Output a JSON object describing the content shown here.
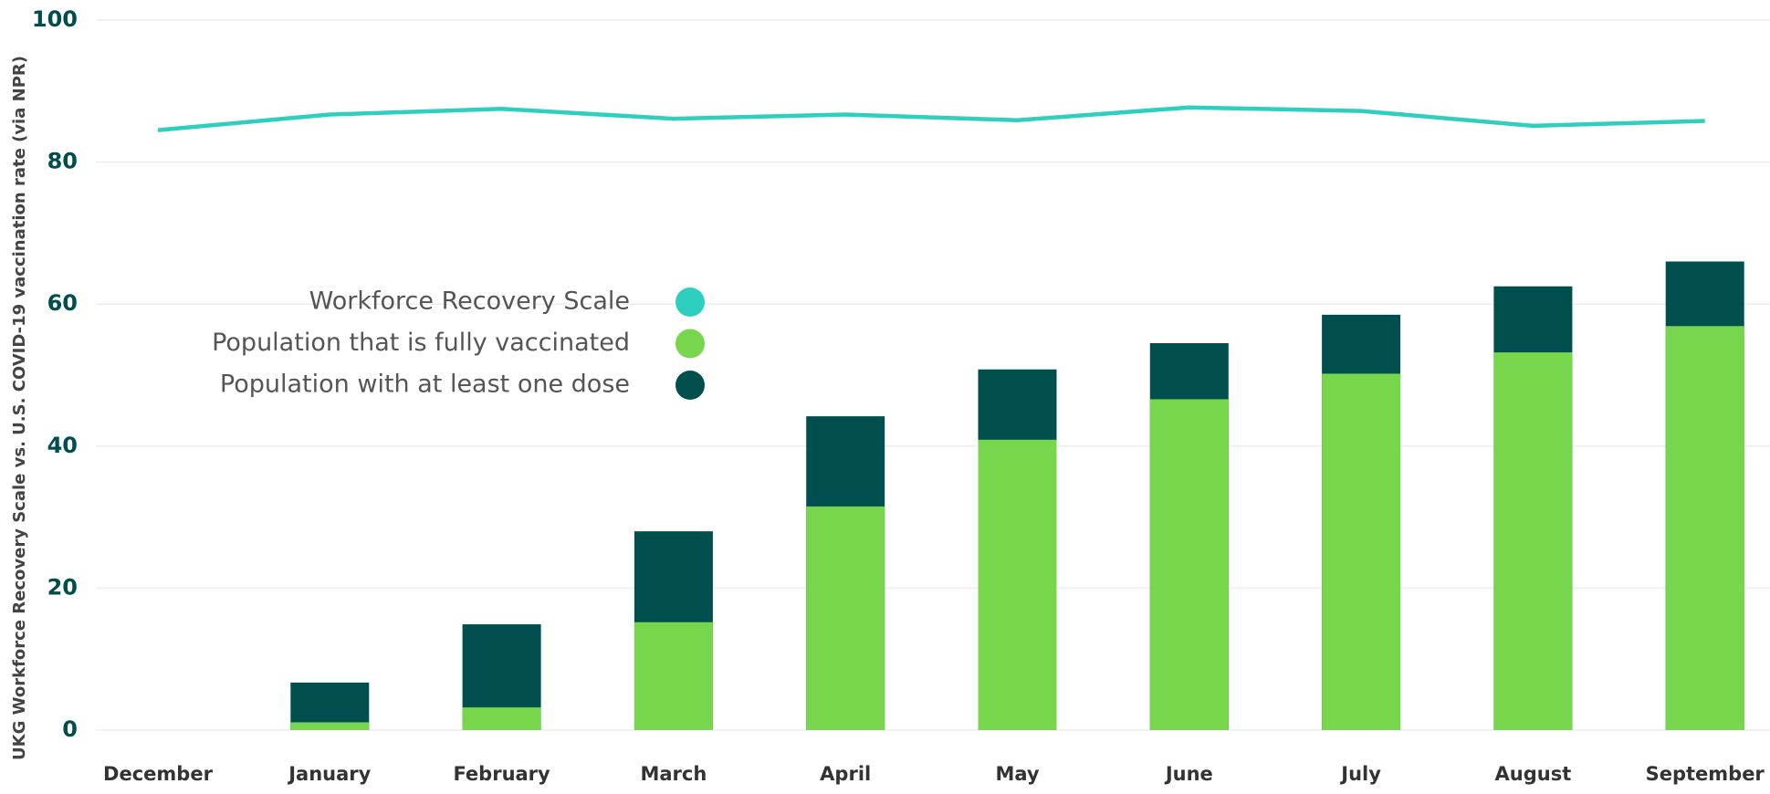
{
  "chart_data": {
    "type": "bar",
    "y_axis_label": "UKG Workforce Recovery Scale vs. U.S. COVID-19 vaccination rate (via NPR)",
    "categories": [
      "December",
      "January",
      "February",
      "March",
      "April",
      "May",
      "June",
      "July",
      "August",
      "September"
    ],
    "series": [
      {
        "name": "Workforce Recovery Scale",
        "type": "line",
        "color": "#2ecfbf",
        "values": [
          84.5,
          86.7,
          87.5,
          86.1,
          86.7,
          85.9,
          87.7,
          87.2,
          85.1,
          85.8
        ]
      },
      {
        "name": "Population that is fully vaccinated",
        "type": "bar",
        "color": "#77d64b",
        "values": [
          0,
          1.1,
          3.2,
          15.2,
          31.5,
          40.9,
          46.6,
          50.2,
          53.2,
          56.9
        ]
      },
      {
        "name": "Population with at least one dose",
        "type": "bar",
        "color": "#004f4f",
        "values": [
          0,
          6.7,
          14.9,
          28.0,
          44.2,
          50.8,
          54.5,
          58.5,
          62.5,
          66.0
        ]
      }
    ],
    "ylim": [
      0,
      100
    ],
    "yticks": [
      0,
      20,
      40,
      60,
      80,
      100
    ],
    "grid": true,
    "legend": "upper left"
  }
}
